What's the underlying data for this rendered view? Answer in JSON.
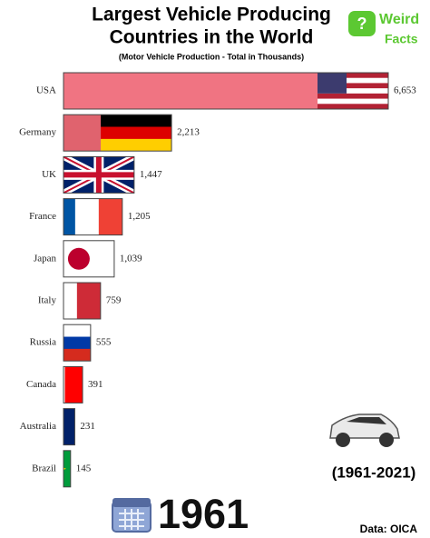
{
  "chart_data": {
    "type": "bar",
    "title": [
      "Largest Vehicle Producing",
      "Countries in the World"
    ],
    "subtitle": "(Motor Vehicle Production - Total in Thousands)",
    "categories": [
      "USA",
      "Germany",
      "UK",
      "France",
      "Japan",
      "Italy",
      "Russia",
      "Canada",
      "Australia",
      "Brazil"
    ],
    "values": [
      6653,
      2213,
      1447,
      1205,
      1039,
      759,
      555,
      391,
      231,
      145
    ],
    "value_labels": [
      "6,653",
      "2,213",
      "1,447",
      "1,205",
      "1,039",
      "759",
      "555",
      "391",
      "231",
      "145"
    ],
    "colors": [
      "#f07482",
      "#e0636e",
      "#2b3f8c",
      "#e3343f",
      "#ffffff",
      "#d7303a",
      "#ffffff",
      "#f01c1c",
      "#1c2a7a",
      "#1a9a40"
    ],
    "period": "(1961-2021)",
    "year": "1961",
    "source": "Data: OICA"
  },
  "logo": {
    "line1": "Weird",
    "line2": "Facts"
  }
}
